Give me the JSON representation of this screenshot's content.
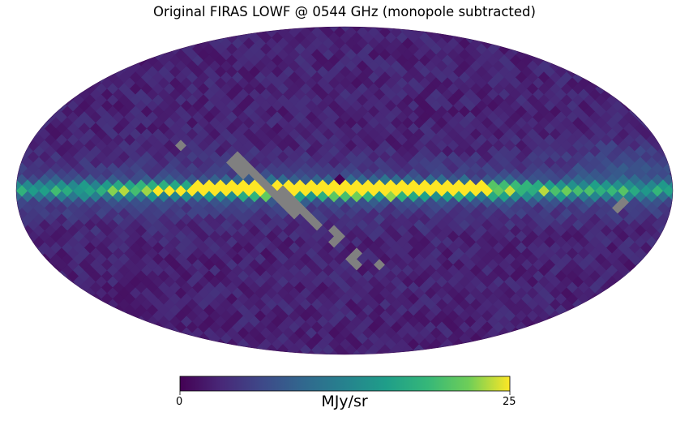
{
  "chart_data": {
    "type": "heatmap",
    "projection": "mollweide",
    "title": "Original FIRAS LOWF @ 0544 GHz (monopole subtracted)",
    "colormap": "viridis",
    "colorbar": {
      "min": 0,
      "max": 25,
      "tick_labels": [
        "0",
        "25"
      ],
      "unit_label": "MJy/sr",
      "placement": "bottom"
    },
    "bad_value_color": "#808080",
    "features": [
      {
        "name": "galactic-plane-band",
        "description_value": "bright emission along equator, peak near 25 MJy/sr toward galactic center"
      },
      {
        "name": "masked-strip",
        "description_value": "diagonal strip of unobserved (grey) pixels"
      }
    ]
  }
}
